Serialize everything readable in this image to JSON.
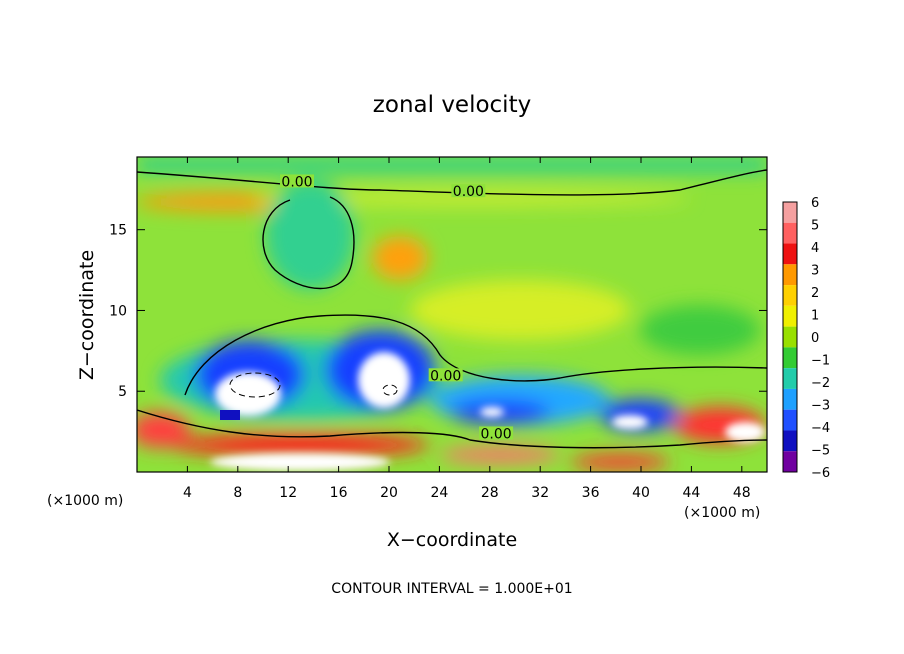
{
  "chart_data": {
    "type": "heatmap",
    "title": "zonal velocity",
    "xlabel": "X−coordinate",
    "ylabel": "Z−coordinate",
    "x_unit_left": "(×1000 m)",
    "x_unit_right": "(×1000 m)",
    "footer": "CONTOUR INTERVAL = 1.000E+01",
    "xlim": [
      0,
      50
    ],
    "ylim": [
      0,
      19.5
    ],
    "x_ticks": [
      4,
      8,
      12,
      16,
      20,
      24,
      28,
      32,
      36,
      40,
      44,
      48
    ],
    "y_ticks": [
      5,
      10,
      15
    ],
    "colorbar": {
      "levels": [
        "6",
        "5",
        "4",
        "3",
        "2",
        "1",
        "0",
        "−1",
        "−2",
        "−3",
        "−4",
        "−5",
        "−6"
      ],
      "colors": [
        "#f5a0a0",
        "#ff6060",
        "#ee1111",
        "#ff9900",
        "#ffd000",
        "#f0f000",
        "#99e000",
        "#33cc33",
        "#22ccaa",
        "#1ea0ff",
        "#2050ff",
        "#1010c0",
        "#7000a0"
      ]
    },
    "contour_labels": [
      {
        "text": "0.00",
        "x": 12.7,
        "y": 17.8
      },
      {
        "text": "0.00",
        "x": 26.3,
        "y": 17.2
      },
      {
        "text": "0.00",
        "x": 24.5,
        "y": 5.8
      },
      {
        "text": "0.00",
        "x": 28.5,
        "y": 2.2
      }
    ]
  }
}
